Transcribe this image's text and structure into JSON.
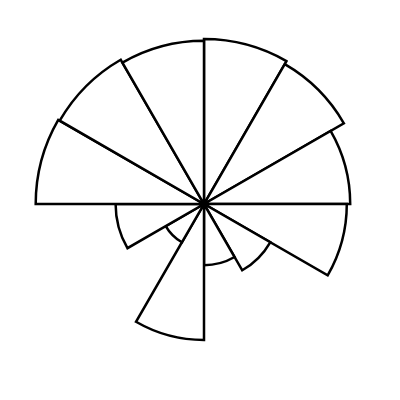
{
  "chart_data": {
    "type": "polar",
    "categories": [
      null,
      null,
      null,
      null,
      null,
      null,
      null,
      null,
      null,
      null,
      null,
      null
    ],
    "values": [
      97,
      95,
      86,
      84,
      45,
      36,
      80,
      26,
      52,
      99,
      98,
      96
    ],
    "color": "#ffffff",
    "ylim": [
      0,
      100
    ],
    "tick_labels": false,
    "grid": false
  }
}
